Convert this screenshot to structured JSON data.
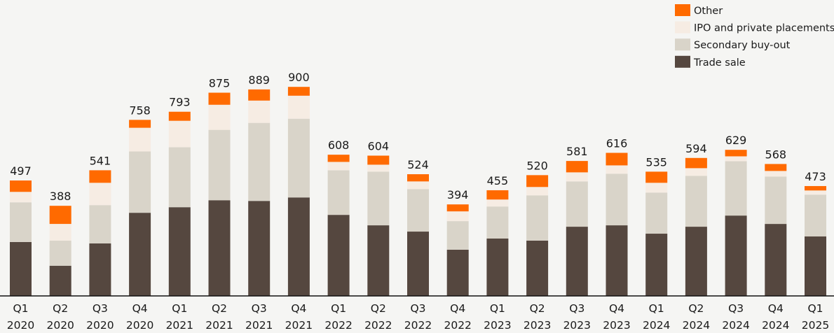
{
  "chart_data": {
    "type": "bar",
    "stacked": true,
    "title": "",
    "xlabel": "",
    "ylabel": "",
    "ylim": [
      0,
      1000
    ],
    "grid": false,
    "legend_position": "top-right",
    "categories": [
      [
        "Q1",
        "2020"
      ],
      [
        "Q2",
        "2020"
      ],
      [
        "Q3",
        "2020"
      ],
      [
        "Q4",
        "2020"
      ],
      [
        "Q1",
        "2021"
      ],
      [
        "Q2",
        "2021"
      ],
      [
        "Q3",
        "2021"
      ],
      [
        "Q4",
        "2021"
      ],
      [
        "Q1",
        "2022"
      ],
      [
        "Q2",
        "2022"
      ],
      [
        "Q3",
        "2022"
      ],
      [
        "Q4",
        "2022"
      ],
      [
        "Q1",
        "2023"
      ],
      [
        "Q2",
        "2023"
      ],
      [
        "Q3",
        "2023"
      ],
      [
        "Q4",
        "2023"
      ],
      [
        "Q1",
        "2024"
      ],
      [
        "Q2",
        "2024"
      ],
      [
        "Q3",
        "2024"
      ],
      [
        "Q4",
        "2024"
      ],
      [
        "Q1",
        "2025"
      ]
    ],
    "totals": [
      497,
      388,
      541,
      758,
      793,
      875,
      889,
      900,
      608,
      604,
      524,
      394,
      455,
      520,
      581,
      616,
      535,
      594,
      629,
      568,
      473
    ],
    "series": [
      {
        "name": "Trade sale",
        "color": "#55473f",
        "values": [
          232,
          130,
          226,
          358,
          382,
          412,
          409,
          424,
          349,
          304,
          277,
          199,
          247,
          238,
          298,
          304,
          268,
          298,
          346,
          310,
          256
        ]
      },
      {
        "name": "Secondary buy-out",
        "color": "#d9d4c9",
        "values": [
          171,
          108,
          165,
          264,
          258,
          303,
          336,
          339,
          192,
          231,
          183,
          123,
          138,
          195,
          195,
          222,
          177,
          219,
          234,
          204,
          180
        ]
      },
      {
        "name": "IPO and private placements",
        "color": "#f6ece3",
        "values": [
          45,
          72,
          96,
          102,
          114,
          108,
          96,
          99,
          36,
          30,
          33,
          42,
          30,
          36,
          39,
          36,
          42,
          33,
          21,
          24,
          18
        ]
      },
      {
        "name": "Other",
        "color": "#ff6a00",
        "values": [
          49,
          78,
          54,
          34,
          39,
          52,
          48,
          38,
          31,
          39,
          31,
          30,
          40,
          51,
          49,
          54,
          48,
          44,
          28,
          30,
          19
        ]
      }
    ],
    "legend_order": [
      "Other",
      "IPO and private placements",
      "Secondary buy-out",
      "Trade sale"
    ]
  }
}
